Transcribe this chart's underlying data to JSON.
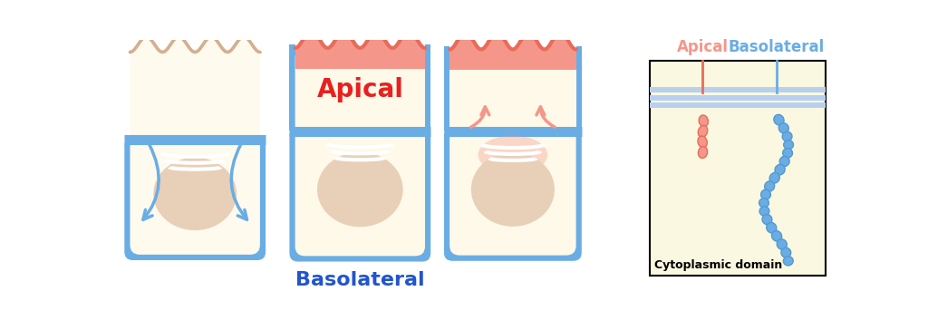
{
  "bg_color": "#ffffff",
  "cell_fill": "#fffaee",
  "cell_fill2": "#fef9e8",
  "cell_border_blue": "#6aade4",
  "cell_border_blue_dark": "#5599d0",
  "apical_red": "#f5968a",
  "apical_red_dark": "#e96b5a",
  "apical_red_text": "#e82020",
  "basolateral_blue_text": "#2255cc",
  "nucleus_fill": "#e8cfb8",
  "arrow_blue": "#6aade4",
  "arrow_red": "#f5968a",
  "membrane_blue_light": "#b8d0ee",
  "panel_bg": "#faf8e0",
  "cell1_wave_fill": "#f5e8d5",
  "cell1_wave_line": "#d4b090",
  "apical_label": "Apical",
  "basolateral_label": "Basolateral",
  "cytoplasmic_label": "Cytoplasmic domain"
}
